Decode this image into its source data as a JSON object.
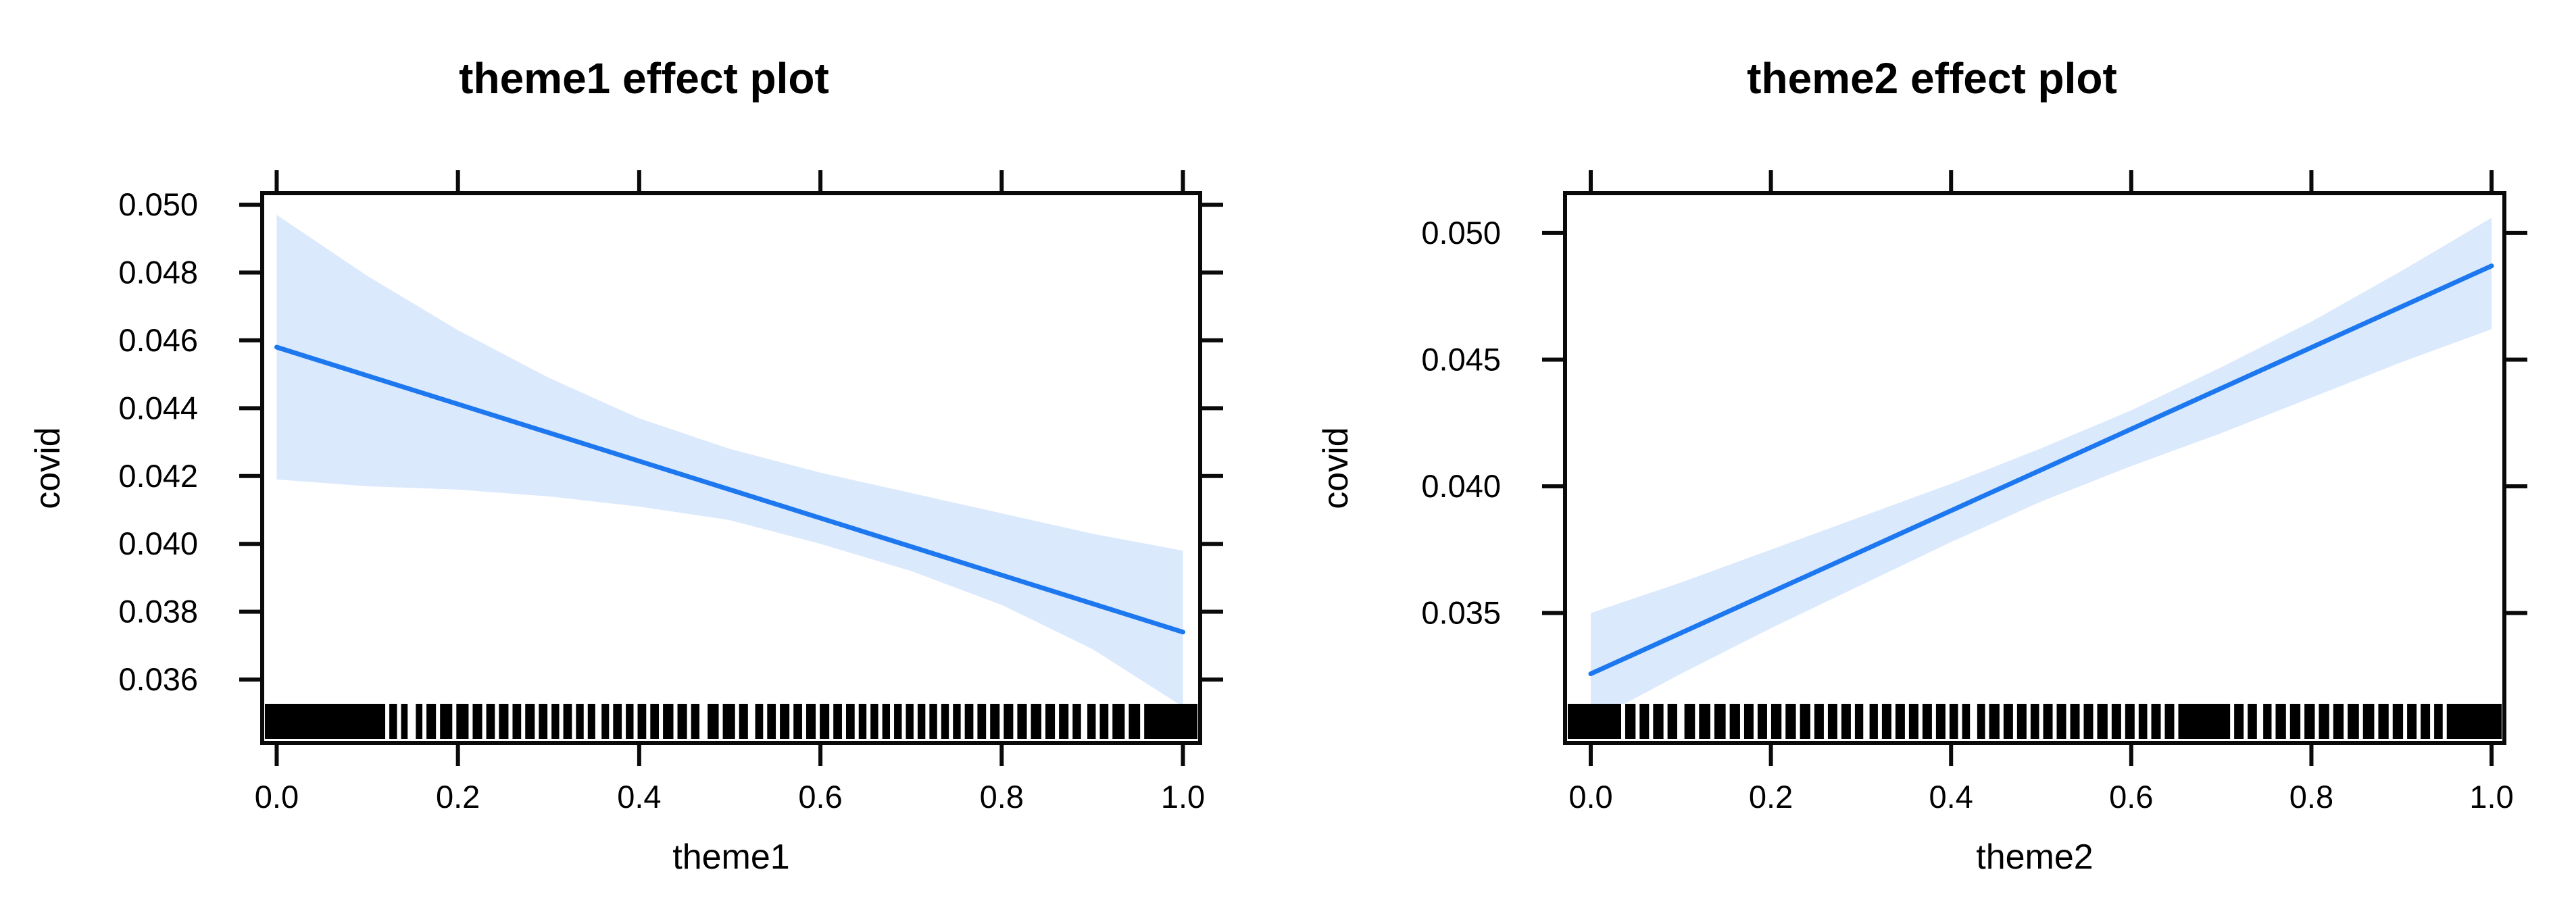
{
  "figure": {
    "background": "#ffffff",
    "panel_count": 2
  },
  "chart_data": [
    {
      "type": "line",
      "title": "theme1 effect plot",
      "xlabel": "theme1",
      "ylabel": "covid",
      "x_ticks": [
        "0.0",
        "0.2",
        "0.4",
        "0.6",
        "0.8",
        "1.0"
      ],
      "x_tick_values": [
        0.0,
        0.2,
        0.4,
        0.6,
        0.8,
        1.0
      ],
      "y_ticks": [
        "0.036",
        "0.038",
        "0.040",
        "0.042",
        "0.044",
        "0.046",
        "0.048",
        "0.050"
      ],
      "y_tick_values": [
        0.036,
        0.038,
        0.04,
        0.042,
        0.044,
        0.046,
        0.048,
        0.05
      ],
      "xlim": [
        -0.016,
        1.019
      ],
      "ylim": [
        0.03413,
        0.05034
      ],
      "grid": false,
      "legend": "none",
      "x": [
        0.0,
        0.1,
        0.2,
        0.3,
        0.4,
        0.5,
        0.6,
        0.7,
        0.8,
        0.9,
        1.0
      ],
      "series": [
        {
          "name": "fitted-effect",
          "values": [
            0.0458,
            0.04496,
            0.04412,
            0.04328,
            0.04244,
            0.0416,
            0.04076,
            0.03992,
            0.03908,
            0.03824,
            0.0374
          ]
        },
        {
          "name": "ci-upper",
          "values": [
            0.0497,
            0.0479,
            0.0463,
            0.0449,
            0.0437,
            0.0428,
            0.0421,
            0.0415,
            0.0409,
            0.0403,
            0.0398
          ]
        },
        {
          "name": "ci-lower",
          "values": [
            0.0419,
            0.0417,
            0.0416,
            0.0414,
            0.0411,
            0.0407,
            0.04,
            0.0392,
            0.0382,
            0.0369,
            0.0352
          ]
        }
      ],
      "rug_gaps_x": [
        0.122,
        0.135,
        0.149,
        0.163,
        0.178,
        0.196,
        0.214,
        0.229,
        0.243,
        0.258,
        0.272,
        0.287,
        0.301,
        0.314,
        0.328,
        0.341,
        0.355,
        0.369,
        0.383,
        0.396,
        0.41,
        0.424,
        0.44,
        0.455,
        0.471,
        0.49,
        0.508,
        0.524,
        0.539,
        0.553,
        0.568,
        0.582,
        0.597,
        0.612,
        0.626,
        0.64,
        0.653,
        0.666,
        0.679,
        0.692,
        0.705,
        0.718,
        0.731,
        0.744,
        0.757,
        0.771,
        0.785,
        0.8,
        0.815,
        0.83,
        0.846,
        0.861,
        0.876,
        0.891,
        0.906,
        0.92,
        0.938,
        0.955
      ],
      "rug_gaps_w": [
        0.0045,
        0.0045,
        0.009,
        0.0045,
        0.0045,
        0.0045,
        0.0045,
        0.0045,
        0.0045,
        0.0045,
        0.0045,
        0.0045,
        0.0045,
        0.0045,
        0.0045,
        0.0045,
        0.007,
        0.0045,
        0.0045,
        0.0045,
        0.0045,
        0.0045,
        0.0045,
        0.0045,
        0.009,
        0.0045,
        0.0045,
        0.008,
        0.0045,
        0.0045,
        0.0045,
        0.0045,
        0.0045,
        0.0045,
        0.0045,
        0.0045,
        0.0045,
        0.0045,
        0.0045,
        0.0045,
        0.0045,
        0.0045,
        0.0045,
        0.0045,
        0.0045,
        0.0045,
        0.0045,
        0.0045,
        0.0045,
        0.0045,
        0.0045,
        0.0045,
        0.0045,
        0.007,
        0.0045,
        0.0045,
        0.0045,
        0.0045
      ],
      "colors": {
        "line": "#1d78f0",
        "band": "#dbe9fc",
        "axis": "#0a0a0a",
        "rug": "#000000"
      }
    },
    {
      "type": "line",
      "title": "theme2 effect plot",
      "xlabel": "theme2",
      "ylabel": "covid",
      "x_ticks": [
        "0.0",
        "0.2",
        "0.4",
        "0.6",
        "0.8",
        "1.0"
      ],
      "x_tick_values": [
        0.0,
        0.2,
        0.4,
        0.6,
        0.8,
        1.0
      ],
      "y_ticks": [
        "0.035",
        "0.040",
        "0.045",
        "0.050"
      ],
      "y_tick_values": [
        0.035,
        0.04,
        0.045,
        0.05
      ],
      "xlim": [
        -0.0285,
        1.0142
      ],
      "ylim": [
        0.02987,
        0.05157
      ],
      "grid": false,
      "legend": "none",
      "x": [
        0.0,
        0.1,
        0.2,
        0.3,
        0.4,
        0.5,
        0.6,
        0.7,
        0.8,
        0.9,
        1.0
      ],
      "series": [
        {
          "name": "fitted-effect",
          "values": [
            0.0326,
            0.03421,
            0.03582,
            0.03743,
            0.03904,
            0.04065,
            0.04226,
            0.04387,
            0.04548,
            0.04709,
            0.0487
          ]
        },
        {
          "name": "ci-upper",
          "values": [
            0.035,
            0.0362,
            0.0375,
            0.0388,
            0.0401,
            0.0415,
            0.043,
            0.0447,
            0.0465,
            0.0485,
            0.0506
          ]
        },
        {
          "name": "ci-lower",
          "values": [
            0.0307,
            0.0326,
            0.0344,
            0.0361,
            0.0378,
            0.0394,
            0.0408,
            0.0421,
            0.0435,
            0.0449,
            0.0462
          ]
        }
      ],
      "rug_gaps_x": [
        0.036,
        0.052,
        0.067,
        0.083,
        0.1,
        0.118,
        0.135,
        0.152,
        0.168,
        0.183,
        0.198,
        0.214,
        0.23,
        0.246,
        0.261,
        0.276,
        0.291,
        0.306,
        0.321,
        0.336,
        0.351,
        0.366,
        0.381,
        0.396,
        0.41,
        0.425,
        0.44,
        0.456,
        0.471,
        0.486,
        0.5,
        0.515,
        0.53,
        0.545,
        0.56,
        0.576,
        0.591,
        0.606,
        0.62,
        0.635,
        0.65,
        0.712,
        0.727,
        0.743,
        0.758,
        0.774,
        0.79,
        0.806,
        0.822,
        0.838,
        0.855,
        0.872,
        0.888,
        0.904,
        0.919,
        0.934,
        0.948
      ],
      "rug_gaps_w": [
        0.0045,
        0.0045,
        0.0045,
        0.0045,
        0.008,
        0.0045,
        0.0045,
        0.0045,
        0.0045,
        0.0045,
        0.0045,
        0.0045,
        0.0045,
        0.0045,
        0.0045,
        0.0045,
        0.0045,
        0.007,
        0.0045,
        0.0045,
        0.0045,
        0.0045,
        0.0045,
        0.0045,
        0.0045,
        0.008,
        0.0045,
        0.0045,
        0.0045,
        0.0045,
        0.0045,
        0.0045,
        0.0045,
        0.0045,
        0.0045,
        0.0045,
        0.0045,
        0.0045,
        0.0045,
        0.0045,
        0.0045,
        0.0045,
        0.0045,
        0.007,
        0.0045,
        0.0045,
        0.0045,
        0.0045,
        0.0045,
        0.0045,
        0.0045,
        0.0045,
        0.0045,
        0.0045,
        0.0045,
        0.0045,
        0.0045
      ],
      "colors": {
        "line": "#1d78f0",
        "band": "#dbe9fc",
        "axis": "#0a0a0a",
        "rug": "#000000"
      }
    }
  ]
}
